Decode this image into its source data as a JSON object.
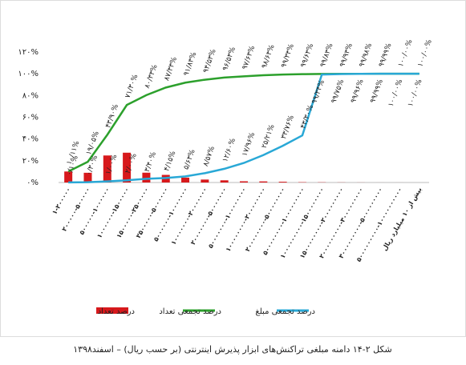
{
  "chart_data": {
    "type": "bar",
    "title": "شکل ۲-۱۴ دامنه مبلغی تراکنش‌های ابزار پذیرش اینترنتی (بر حسب ریال) – اسفند۱۳۹۸",
    "categories": [
      "۱-۲۰۰۰۰۰",
      "۲۰۰۰۰۰-۵۰۰۰۰۰",
      "۵۰۰۰۰۰-۱۰۰۰۰۰۰",
      "۱۰۰۰۰۰۰-۱۵۰۰۰۰۰",
      "۱۵۰۰۰۰۰-۲۵۰۰۰۰۰",
      "۲۵۰۰۰۰۰-۵۰۰۰۰۰۰",
      "۵۰۰۰۰۰۰-۱۰۰۰۰۰۰۰",
      "۱۰۰۰۰۰۰۰-۲۰۰۰۰۰۰۰",
      "۲۰۰۰۰۰۰۰-۵۰۰۰۰۰۰۰",
      "۵۰۰۰۰۰۰۰-۱۰۰۰۰۰۰۰۰",
      "۱۰۰۰۰۰۰۰۰-۲۰۰۰۰۰۰۰۰",
      "۲۰۰۰۰۰۰۰۰-۵۰۰۰۰۰۰۰۰",
      "۵۰۰۰۰۰۰۰۰-۱۰۰۰۰۰۰۰۰۰",
      "۱۰۰۰۰۰۰۰۰۰-۱۵۰۰۰۰۰۰۰۰",
      "۱۵۰۰۰۰۰۰۰۰-۲۰۰۰۰۰۰۰۰۰",
      "۲۰۰۰۰۰۰۰۰۰-۳۰۰۰۰۰۰۰۰۰",
      "۳۰۰۰۰۰۰۰۰۰-۵۰۰۰۰۰۰۰۰۰",
      "۵۰۰۰۰۰۰۰۰۰-۱۰۰۰۰۰۰۰۰۰۰",
      "بیش از ۱۰ میلیارد ریال"
    ],
    "series": [
      {
        "name": "درصد تعداد",
        "type": "bar",
        "color": "#d7191c",
        "values": [
          10.11,
          8.94,
          24.85,
          27.4,
          9.03,
          7.0,
          4.5,
          2.7,
          2.0,
          1.1,
          1.0,
          0.7,
          0.3,
          0.2,
          0.1,
          0.05,
          0.01,
          0.01,
          0
        ]
      },
      {
        "name": "درصد تجمعی تعداد",
        "type": "line",
        "color": "#2ca02c",
        "values": [
          10.11,
          19.05,
          43.9,
          71.3,
          80.33,
          87.33,
          91.83,
          94.53,
          96.53,
          97.63,
          98.63,
          99.33,
          99.63,
          99.83,
          99.93,
          99.98,
          99.99,
          100,
          100
        ],
        "value_labels": [
          "۱۰/۱۱%",
          "۱۹/۰۵%",
          "۴۳/۹۰%",
          "۷۱/۳۰%",
          "۸۰/۳۳%",
          "۸۷/۳۳%",
          "۹۱/۸۳%",
          "۹۴/۵۳%",
          "۹۶/۵۳%",
          "۹۷/۶۳%",
          "۹۸/۶۳%",
          "۹۹/۳۳%",
          "۹۹/۶۳%",
          "۹۹/۸۳%",
          "۹۹/۹۳%",
          "۹۹/۹۸%",
          "۹۹/۹۹%",
          "۱۰۰/۰۰%",
          "۱۰۰/۰۰%"
        ]
      },
      {
        "name": "درصد تجمعی مبلغ",
        "type": "line",
        "color": "#29a8d6",
        "values": [
          0.1,
          0.3,
          1.0,
          2.0,
          3.4,
          4.15,
          5.63,
          8.57,
          12.6,
          17.96,
          25.21,
          33.76,
          43.3,
          99.34,
          99.75,
          99.96,
          99.99,
          100,
          100
        ],
        "value_labels": [
          "۰/۱۰%",
          "۰/۳۰%",
          "۱/۰۰%",
          "۲/۰۰%",
          "۳/۴۰%",
          "۴/۱۵%",
          "۵/۶۳%",
          "۸/۵۷%",
          "۱۲/۶۰%",
          "۱۷/۹۶%",
          "۲۵/۲۱%",
          "۳۳/۷۶%",
          "۴۳/۳۰%",
          "۹۹/۳۴%",
          "۹۹/۷۵%",
          "۹۹/۹۶%",
          "۹۹/۹۹%",
          "۱۰۰/۰۰%",
          "۱۰۰/۰۰%"
        ]
      }
    ],
    "ylim": [
      0,
      120
    ],
    "yticks": [
      {
        "value": 0,
        "label": "۰%"
      },
      {
        "value": 20,
        "label": "۲۰%"
      },
      {
        "value": 40,
        "label": "۴۰%"
      },
      {
        "value": 60,
        "label": "۶۰%"
      },
      {
        "value": 80,
        "label": "۸۰%"
      },
      {
        "value": 100,
        "label": "۱۰۰%"
      },
      {
        "value": 120,
        "label": "۱۲۰%"
      }
    ],
    "grid": false,
    "legend": "bottom"
  }
}
